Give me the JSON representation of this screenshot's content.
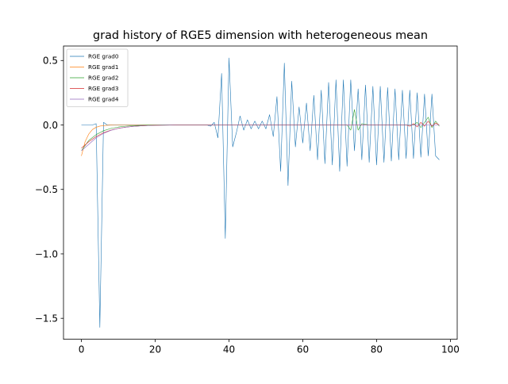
{
  "chart_data": {
    "type": "line",
    "title": "grad history of RGE5 dimension with heterogeneous mean",
    "xlabel": "",
    "ylabel": "",
    "xlim": [
      -4.85,
      101.85
    ],
    "ylim": [
      -1.6625,
      0.6125
    ],
    "grid": false,
    "legend_position": "top-left",
    "x_ticks": [
      0,
      20,
      40,
      60,
      80,
      100
    ],
    "y_ticks": [
      -1.5,
      -1.0,
      -0.5,
      0.0,
      0.5
    ],
    "x_tick_labels": [
      "0",
      "20",
      "40",
      "60",
      "80",
      "100"
    ],
    "y_tick_labels": [
      "−1.5",
      "−1.0",
      "−0.5",
      "0.0",
      "0.5"
    ],
    "series": [
      {
        "name": "RGE grad0",
        "color": "#1f77b4",
        "x": [
          0,
          1,
          2,
          3,
          4,
          5,
          6,
          7,
          8,
          9,
          10,
          11,
          12,
          13,
          14,
          15,
          16,
          17,
          18,
          19,
          20,
          21,
          22,
          23,
          24,
          25,
          26,
          27,
          28,
          29,
          30,
          31,
          32,
          33,
          34,
          35,
          36,
          37,
          38,
          39,
          40,
          41,
          42,
          43,
          44,
          45,
          46,
          47,
          48,
          49,
          50,
          51,
          52,
          53,
          54,
          55,
          56,
          57,
          58,
          59,
          60,
          61,
          62,
          63,
          64,
          65,
          66,
          67,
          68,
          69,
          70,
          71,
          72,
          73,
          74,
          75,
          76,
          77,
          78,
          79,
          80,
          81,
          82,
          83,
          84,
          85,
          86,
          87,
          88,
          89,
          90,
          91,
          92,
          93,
          94,
          95,
          96,
          97
        ],
        "values": [
          0,
          0,
          0,
          0,
          0.01,
          -1.57,
          0.02,
          0,
          0,
          0,
          0,
          0,
          0,
          0,
          0,
          0,
          0,
          0,
          0,
          0,
          0,
          0,
          0,
          0,
          0,
          0,
          0,
          0,
          0,
          0,
          0,
          0,
          0,
          0,
          0,
          -0.01,
          0.02,
          -0.1,
          0.4,
          -0.88,
          0.52,
          -0.17,
          -0.06,
          0.07,
          -0.04,
          0.04,
          -0.03,
          0.03,
          -0.03,
          0.03,
          -0.03,
          0.08,
          -0.09,
          0.22,
          -0.36,
          0.48,
          -0.47,
          0.34,
          -0.17,
          0.14,
          -0.14,
          0.17,
          -0.2,
          0.23,
          -0.27,
          0.27,
          -0.3,
          0.33,
          -0.31,
          0.35,
          -0.36,
          0.35,
          -0.32,
          0.35,
          -0.2,
          0.28,
          -0.27,
          0.31,
          -0.29,
          0.3,
          -0.31,
          0.3,
          -0.29,
          0.29,
          -0.28,
          0.28,
          -0.27,
          0.27,
          -0.26,
          0.27,
          -0.26,
          0.25,
          -0.25,
          0.24,
          -0.24,
          0.24,
          -0.24,
          -0.27
        ]
      },
      {
        "name": "RGE grad1",
        "color": "#ff7f0e",
        "x": [
          0,
          1,
          2,
          3,
          4,
          5,
          6,
          7,
          8,
          9,
          10,
          11,
          12,
          13,
          14,
          15,
          16,
          17,
          18,
          19,
          20,
          21,
          22,
          23,
          24,
          25,
          26,
          27,
          28,
          29,
          30,
          31,
          32,
          33,
          34,
          35
        ],
        "values": [
          -0.24,
          -0.13,
          -0.07,
          -0.035,
          -0.018,
          -0.009,
          -0.005,
          -0.0025,
          -0.001,
          0,
          0,
          0,
          0,
          0,
          0,
          0,
          0,
          0,
          0,
          0,
          0,
          0,
          0,
          0,
          0,
          0,
          0,
          0,
          0,
          0,
          0,
          0,
          0,
          0,
          0,
          0
        ]
      },
      {
        "name": "RGE grad2",
        "color": "#2ca02c",
        "x": [
          0,
          2,
          4,
          6,
          8,
          10,
          12,
          14,
          16,
          18,
          20,
          22,
          24,
          26,
          28,
          30,
          32,
          34,
          36,
          38,
          40,
          42,
          44,
          46,
          48,
          50,
          52,
          54,
          56,
          58,
          60,
          62,
          64,
          66,
          68,
          70,
          72,
          73,
          74,
          75,
          76,
          78,
          80,
          82,
          84,
          86,
          88,
          90,
          91,
          92,
          93,
          94,
          95,
          96,
          97
        ],
        "values": [
          -0.2,
          -0.12,
          -0.075,
          -0.045,
          -0.027,
          -0.016,
          -0.01,
          -0.006,
          -0.0035,
          -0.002,
          -0.001,
          0,
          0,
          0,
          0,
          0,
          0,
          0,
          0,
          0,
          0,
          0,
          0,
          0,
          0,
          0,
          0,
          0,
          0,
          0,
          0,
          0,
          0,
          0,
          0,
          0,
          0,
          -0.04,
          0.12,
          -0.04,
          0.01,
          0,
          0,
          0,
          0,
          0,
          0,
          0,
          0.02,
          -0.02,
          0.02,
          0.06,
          -0.02,
          0.03,
          -0.01
        ]
      },
      {
        "name": "RGE grad3",
        "color": "#d62728",
        "x": [
          0,
          2,
          4,
          6,
          8,
          10,
          12,
          14,
          16,
          18,
          20,
          22,
          24,
          26,
          28,
          30,
          32,
          34,
          36,
          38,
          40,
          42,
          44,
          46,
          48,
          50,
          52,
          54,
          56,
          58,
          60,
          62,
          64,
          66,
          68,
          70,
          72,
          74,
          76,
          78,
          80,
          82,
          84,
          86,
          88,
          89,
          90,
          91,
          92,
          93,
          94,
          95,
          96,
          97
        ],
        "values": [
          -0.18,
          -0.13,
          -0.09,
          -0.06,
          -0.04,
          -0.026,
          -0.017,
          -0.011,
          -0.007,
          -0.0045,
          -0.003,
          -0.002,
          -0.001,
          0,
          0,
          0,
          0,
          0,
          0,
          0,
          0,
          0,
          0,
          0,
          0,
          0,
          0,
          0,
          0,
          0,
          0,
          0,
          0,
          0,
          0,
          0,
          0,
          0,
          0,
          0,
          0,
          0,
          0,
          0,
          0,
          -0.01,
          0.01,
          -0.015,
          0.02,
          -0.01,
          0.03,
          -0.01,
          0.015,
          0
        ]
      },
      {
        "name": "RGE grad4",
        "color": "#9467bd",
        "x": [
          0,
          2,
          4,
          6,
          8,
          10,
          12,
          14,
          16,
          18,
          20,
          22,
          24,
          26,
          28,
          30,
          32,
          34,
          36,
          38,
          40,
          42,
          44,
          46,
          48,
          50,
          52,
          54,
          56,
          58,
          60,
          62,
          64,
          66,
          68,
          70,
          72,
          74,
          76,
          78,
          80,
          82,
          84,
          86,
          88,
          90,
          92,
          94,
          96,
          97
        ],
        "values": [
          -0.2,
          -0.15,
          -0.1,
          -0.065,
          -0.042,
          -0.027,
          -0.017,
          -0.011,
          -0.007,
          -0.0045,
          -0.003,
          -0.002,
          -0.001,
          0,
          0,
          0,
          0,
          0,
          0,
          0,
          0,
          0,
          0,
          0,
          0,
          0,
          0,
          0,
          0,
          0,
          0,
          0,
          0,
          0,
          0,
          0,
          0,
          0,
          0,
          0,
          0,
          0,
          0,
          0,
          0,
          0,
          0,
          0,
          0,
          0
        ]
      }
    ]
  }
}
